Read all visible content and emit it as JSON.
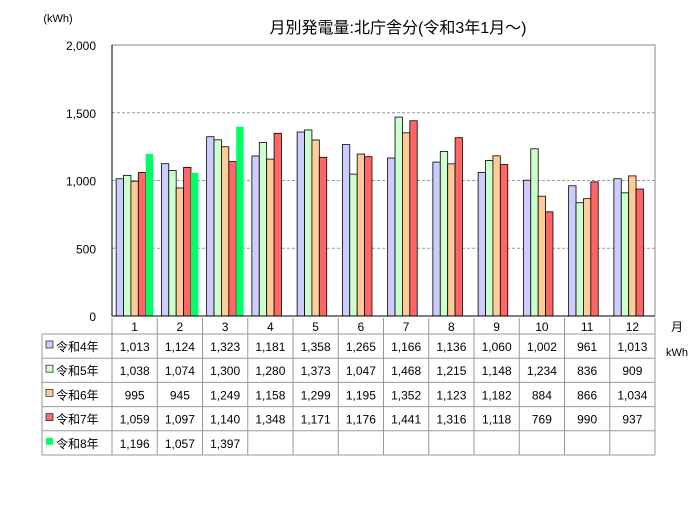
{
  "chart_data": {
    "type": "bar",
    "title": "月別発電量:北庁舎分(令和3年1月～)",
    "ylabel": "(kWh)",
    "xlabel": "月",
    "table_unit": "kWh",
    "ylim": [
      0,
      2000
    ],
    "yticks": [
      "0",
      "500",
      "1,000",
      "1,500",
      "2,000"
    ],
    "ytick_values": [
      0,
      500,
      1000,
      1500,
      2000
    ],
    "grid": true,
    "categories": [
      "1",
      "2",
      "3",
      "4",
      "5",
      "6",
      "7",
      "8",
      "9",
      "10",
      "11",
      "12"
    ],
    "series": [
      {
        "name": "令和4年",
        "color": "#CCCCFF",
        "values": [
          1013,
          1124,
          1323,
          1181,
          1358,
          1265,
          1166,
          1136,
          1060,
          1002,
          961,
          1013
        ],
        "labels": [
          "1,013",
          "1,124",
          "1,323",
          "1,181",
          "1,358",
          "1,265",
          "1,166",
          "1,136",
          "1,060",
          "1,002",
          "961",
          "1,013"
        ]
      },
      {
        "name": "令和5年",
        "color": "#CCFFCC",
        "values": [
          1038,
          1074,
          1300,
          1280,
          1373,
          1047,
          1468,
          1215,
          1148,
          1234,
          836,
          909
        ],
        "labels": [
          "1,038",
          "1,074",
          "1,300",
          "1,280",
          "1,373",
          "1,047",
          "1,468",
          "1,215",
          "1,148",
          "1,234",
          "836",
          "909"
        ]
      },
      {
        "name": "令和6年",
        "color": "#FFCC99",
        "values": [
          995,
          945,
          1249,
          1158,
          1299,
          1195,
          1352,
          1123,
          1182,
          884,
          866,
          1034
        ],
        "labels": [
          "995",
          "945",
          "1,249",
          "1,158",
          "1,299",
          "1,195",
          "1,352",
          "1,123",
          "1,182",
          "884",
          "866",
          "1,034"
        ]
      },
      {
        "name": "令和7年",
        "color": "#FF6666",
        "values": [
          1059,
          1097,
          1140,
          1348,
          1171,
          1176,
          1441,
          1316,
          1118,
          769,
          990,
          937
        ],
        "labels": [
          "1,059",
          "1,097",
          "1,140",
          "1,348",
          "1,171",
          "1,176",
          "1,441",
          "1,316",
          "1,118",
          "769",
          "990",
          "937"
        ]
      },
      {
        "name": "令和8年",
        "color": "#00FF66",
        "values": [
          1196,
          1057,
          1397,
          null,
          null,
          null,
          null,
          null,
          null,
          null,
          null,
          null
        ],
        "labels": [
          "1,196",
          "1,057",
          "1,397",
          "",
          "",
          "",
          "",
          "",
          "",
          "",
          "",
          ""
        ]
      }
    ]
  }
}
